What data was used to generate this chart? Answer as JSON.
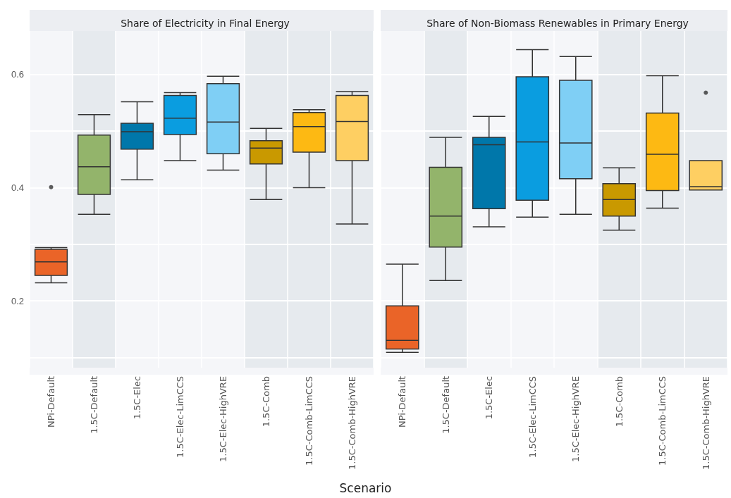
{
  "chart_data": [
    {
      "type": "box",
      "title": "Share of Electricity in Final Energy",
      "xlabel": "Scenario",
      "categories": [
        "NPi-Default",
        "1.5C-Default",
        "1.5C-Elec",
        "1.5C-Elec-LimCCS",
        "1.5C-Elec-HighVRE",
        "1.5C-Comb",
        "1.5C-Comb-LimCCS",
        "1.5C-Comb-HighVRE"
      ],
      "colors": [
        "#ea6428",
        "#93b46b",
        "#0077aa",
        "#0a9de0",
        "#7fcff5",
        "#c99900",
        "#fdb913",
        "#fecf62"
      ],
      "boxes": [
        {
          "low": 0.232,
          "q1": 0.245,
          "median": 0.269,
          "q3": 0.291,
          "high": 0.294,
          "outliers": [
            0.401
          ]
        },
        {
          "low": 0.353,
          "q1": 0.388,
          "median": 0.437,
          "q3": 0.493,
          "high": 0.529
        },
        {
          "low": 0.414,
          "q1": 0.468,
          "median": 0.499,
          "q3": 0.514,
          "high": 0.552
        },
        {
          "low": 0.448,
          "q1": 0.494,
          "median": 0.523,
          "q3": 0.563,
          "high": 0.568
        },
        {
          "low": 0.431,
          "q1": 0.46,
          "median": 0.516,
          "q3": 0.584,
          "high": 0.597
        },
        {
          "low": 0.379,
          "q1": 0.442,
          "median": 0.47,
          "q3": 0.483,
          "high": 0.505
        },
        {
          "low": 0.4,
          "q1": 0.463,
          "median": 0.508,
          "q3": 0.533,
          "high": 0.538
        },
        {
          "low": 0.336,
          "q1": 0.448,
          "median": 0.517,
          "q3": 0.563,
          "high": 0.57
        }
      ],
      "bands": [
        {
          "axis": "x",
          "from": "1.5C-Default",
          "to": "1.5C-Default",
          "color": "#e6eaee"
        },
        {
          "axis": "x",
          "from": "1.5C-Comb",
          "to": "1.5C-Comb-HighVRE",
          "color": "#e6eaee"
        }
      ],
      "ylim": [
        0.082,
        0.677
      ],
      "yticks": [
        {
          "value": 0.1,
          "label": null
        },
        0.2,
        {
          "value": 0.3,
          "label": null
        },
        0.4,
        {
          "value": 0.5,
          "label": null
        },
        0.6
      ],
      "grid": true
    },
    {
      "type": "box",
      "title": "Share of Non-Biomass Renewables in Primary Energy",
      "categories": [
        "NPi-Default",
        "1.5C-Default",
        "1.5C-Elec",
        "1.5C-Elec-LimCCS",
        "1.5C-Elec-HighVRE",
        "1.5C-Comb",
        "1.5C-Comb-LimCCS",
        "1.5C-Comb-HighVRE"
      ],
      "colors": [
        "#ea6428",
        "#93b46b",
        "#0077aa",
        "#0a9de0",
        "#7fcff5",
        "#c99900",
        "#fdb913",
        "#fecf62"
      ],
      "boxes": [
        {
          "low": 0.109,
          "q1": 0.115,
          "median": 0.13,
          "q3": 0.191,
          "high": 0.265
        },
        {
          "low": 0.236,
          "q1": 0.295,
          "median": 0.35,
          "q3": 0.436,
          "high": 0.489
        },
        {
          "low": 0.331,
          "q1": 0.363,
          "median": 0.476,
          "q3": 0.489,
          "high": 0.526
        },
        {
          "low": 0.348,
          "q1": 0.378,
          "median": 0.481,
          "q3": 0.596,
          "high": 0.644
        },
        {
          "low": 0.353,
          "q1": 0.416,
          "median": 0.479,
          "q3": 0.59,
          "high": 0.632
        },
        {
          "low": 0.325,
          "q1": 0.35,
          "median": 0.379,
          "q3": 0.407,
          "high": 0.435
        },
        {
          "low": 0.364,
          "q1": 0.395,
          "median": 0.459,
          "q3": 0.532,
          "high": 0.598
        },
        {
          "low": 0.396,
          "q1": 0.396,
          "median": 0.402,
          "q3": 0.448,
          "high": 0.448,
          "outliers": [
            0.568
          ]
        }
      ],
      "bands": [
        {
          "axis": "x",
          "from": "1.5C-Default",
          "to": "1.5C-Default",
          "color": "#e6eaee"
        },
        {
          "axis": "x",
          "from": "1.5C-Comb",
          "to": "1.5C-Comb-HighVRE",
          "color": "#e6eaee"
        }
      ],
      "ylim": [
        0.082,
        0.677
      ],
      "yticks": [
        {
          "value": 0.1,
          "label": null
        },
        0.2,
        {
          "value": 0.3,
          "label": null
        },
        0.4,
        {
          "value": 0.5,
          "label": null
        },
        0.6
      ],
      "grid": true,
      "tick_labels": "x"
    }
  ]
}
